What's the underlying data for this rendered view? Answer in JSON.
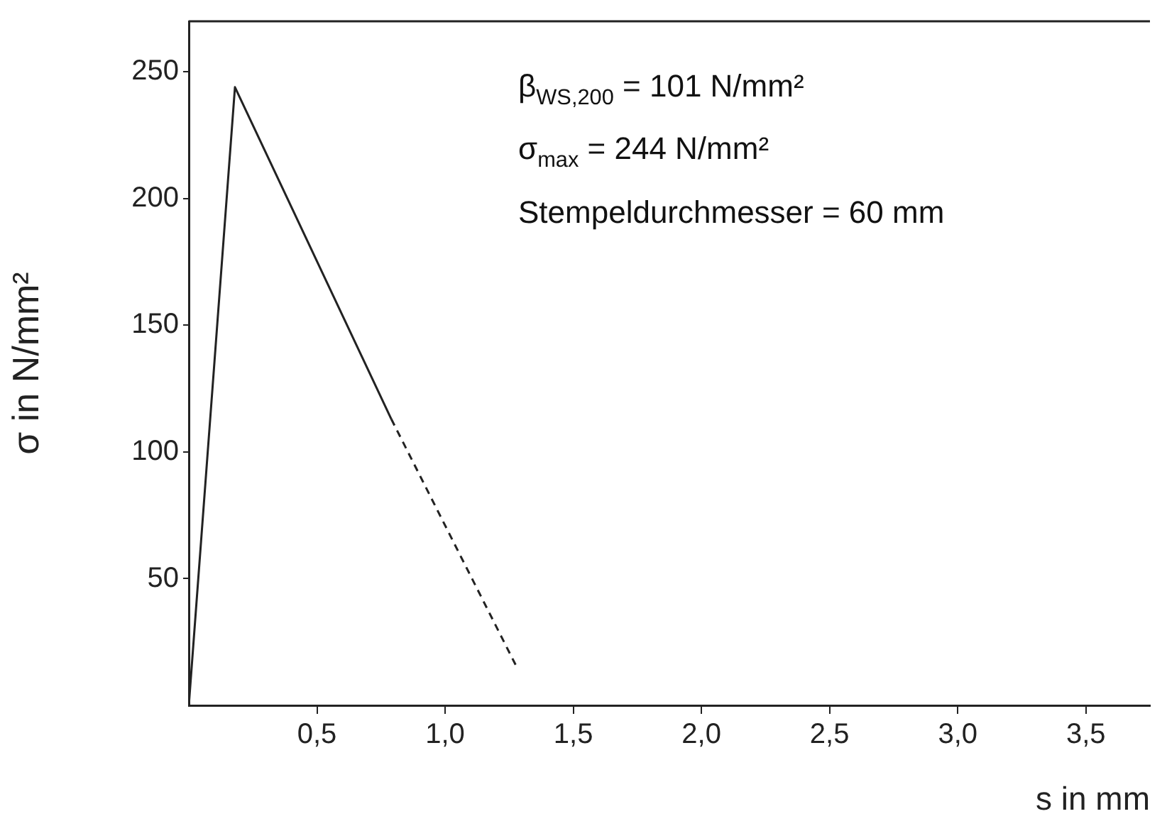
{
  "chart_data": {
    "type": "line",
    "xlabel": "s in mm",
    "ylabel": "σ in N/mm²",
    "annotations": [
      "β$_{WS,200}$ = 101 N/mm²",
      "σ$_{max}$ = 244 N/mm²",
      "Stempeldurchmesser = 60 mm"
    ],
    "series": [
      {
        "color": "#222222",
        "line_style": "solid",
        "x": [
          0,
          0.18,
          0.79
        ],
        "values": [
          0,
          244,
          113
        ]
      },
      {
        "color": "#222222",
        "line_style": "dashed",
        "x": [
          0.79,
          1.28
        ],
        "values": [
          113,
          15
        ]
      }
    ],
    "xlim": [
      0,
      3.75
    ],
    "xticks": [
      {
        "value": 0.5,
        "label": "0,5"
      },
      {
        "value": 1.0,
        "label": "1,0"
      },
      {
        "value": 1.5,
        "label": "1,5"
      },
      {
        "value": 2.0,
        "label": "2,0"
      },
      {
        "value": 2.5,
        "label": "2,5"
      },
      {
        "value": 3.0,
        "label": "3,0"
      },
      {
        "value": 3.5,
        "label": "3,5"
      }
    ],
    "ylim": [
      0,
      270
    ],
    "yticks": [
      50,
      100,
      150,
      200,
      250
    ],
    "grid": false,
    "legend": false,
    "marker": "none"
  }
}
